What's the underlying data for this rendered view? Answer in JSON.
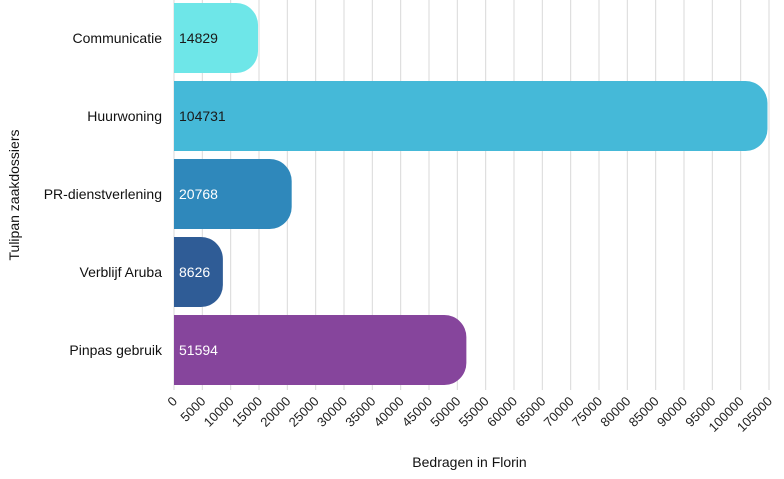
{
  "chart_data": {
    "type": "bar",
    "orientation": "horizontal",
    "categories": [
      "Communicatie",
      "Huurwoning",
      "PR-dienstverlening",
      "Verblijf Aruba",
      "Pinpas gebruik"
    ],
    "values": [
      14829,
      104731,
      20768,
      8626,
      51594
    ],
    "colors": [
      "#6ee6e8",
      "#45b9d8",
      "#2f88bb",
      "#2f5c96",
      "#86459c"
    ],
    "value_label_colors": [
      "#1a1a1a",
      "#1a1a1a",
      "#ffffff",
      "#ffffff",
      "#ffffff"
    ],
    "xlabel": "Bedragen in Florin",
    "ylabel": "Tulipan zaakdossiers",
    "xlim": [
      0,
      105000
    ],
    "xticks": [
      0,
      5000,
      10000,
      15000,
      20000,
      25000,
      30000,
      35000,
      40000,
      45000,
      50000,
      55000,
      60000,
      65000,
      70000,
      75000,
      80000,
      85000,
      90000,
      95000,
      100000,
      105000
    ],
    "grid": true,
    "legend": "none"
  }
}
